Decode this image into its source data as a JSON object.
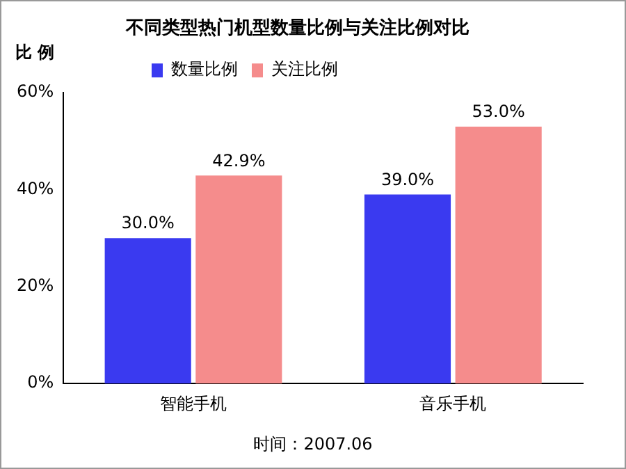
{
  "chart_data": {
    "type": "bar",
    "title": "不同类型热门机型数量比例与关注比例对比",
    "ylabel": "比 例",
    "categories": [
      "智能手机",
      "音乐手机"
    ],
    "series": [
      {
        "name": "数量比例",
        "color": "#3a3af0",
        "values": [
          30.0,
          39.0
        ],
        "value_labels": [
          "30.0%",
          "39.0%"
        ]
      },
      {
        "name": "关注比例",
        "color": "#f58c8c",
        "values": [
          42.9,
          53.0
        ],
        "value_labels": [
          "42.9%",
          "53.0%"
        ]
      }
    ],
    "ylim": [
      0,
      60
    ],
    "yticks": [
      {
        "value": 0,
        "label": "0%"
      },
      {
        "value": 20,
        "label": "20%"
      },
      {
        "value": 40,
        "label": "40%"
      },
      {
        "value": 60,
        "label": "60%"
      }
    ],
    "grid": false,
    "legend": "top left",
    "annotations": [
      "时间：2007.06"
    ]
  }
}
